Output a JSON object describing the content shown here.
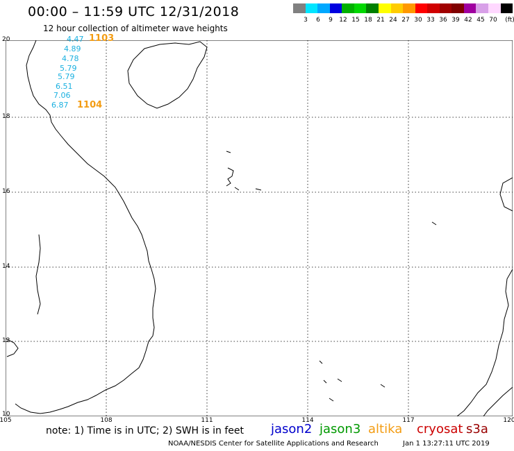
{
  "title": "00:00 – 11:59 UTC 12/31/2018",
  "subtitle": "12 hour collection of altimeter wave heights",
  "colorbar": {
    "colors": [
      "#808080",
      "#00e5ff",
      "#00a8ff",
      "#0000e0",
      "#00b000",
      "#00d800",
      "#008000",
      "#ffff00",
      "#ffcc00",
      "#ff9900",
      "#ff0000",
      "#d00000",
      "#a00000",
      "#800000",
      "#a000a0",
      "#d8a0e8",
      "#ffd8ff",
      "#000000"
    ],
    "labels": [
      "3",
      "6",
      "9",
      "12",
      "15",
      "18",
      "21",
      "24",
      "27",
      "30",
      "33",
      "36",
      "39",
      "42",
      "45",
      "70",
      "(ft)"
    ]
  },
  "axes": {
    "y_ticks": [
      "20",
      "18",
      "16",
      "14",
      "12",
      "10"
    ],
    "x_ticks": [
      "105",
      "108",
      "111",
      "114",
      "117",
      "120"
    ]
  },
  "wave_heights": [
    "4.47",
    "4.89",
    "4.78",
    "5.79",
    "5.79",
    "6.51",
    "7.06",
    "6.87"
  ],
  "pass_labels": [
    "1103",
    "1104"
  ],
  "note": "note: 1) Time is in UTC; 2) SWH is in feet",
  "satellites": [
    {
      "name": "jason2",
      "color": "#0000cc"
    },
    {
      "name": "jason3",
      "color": "#009900"
    },
    {
      "name": "altika",
      "color": "#f39c12"
    },
    {
      "name": "cryosat",
      "color": "#cc0000"
    },
    {
      "name": "s3a",
      "color": "#990000"
    }
  ],
  "credit": "NOAA/NESDIS Center for Satellite Applications and Research",
  "timestamp": "Jan  1 13:27:11 UTC 2019"
}
